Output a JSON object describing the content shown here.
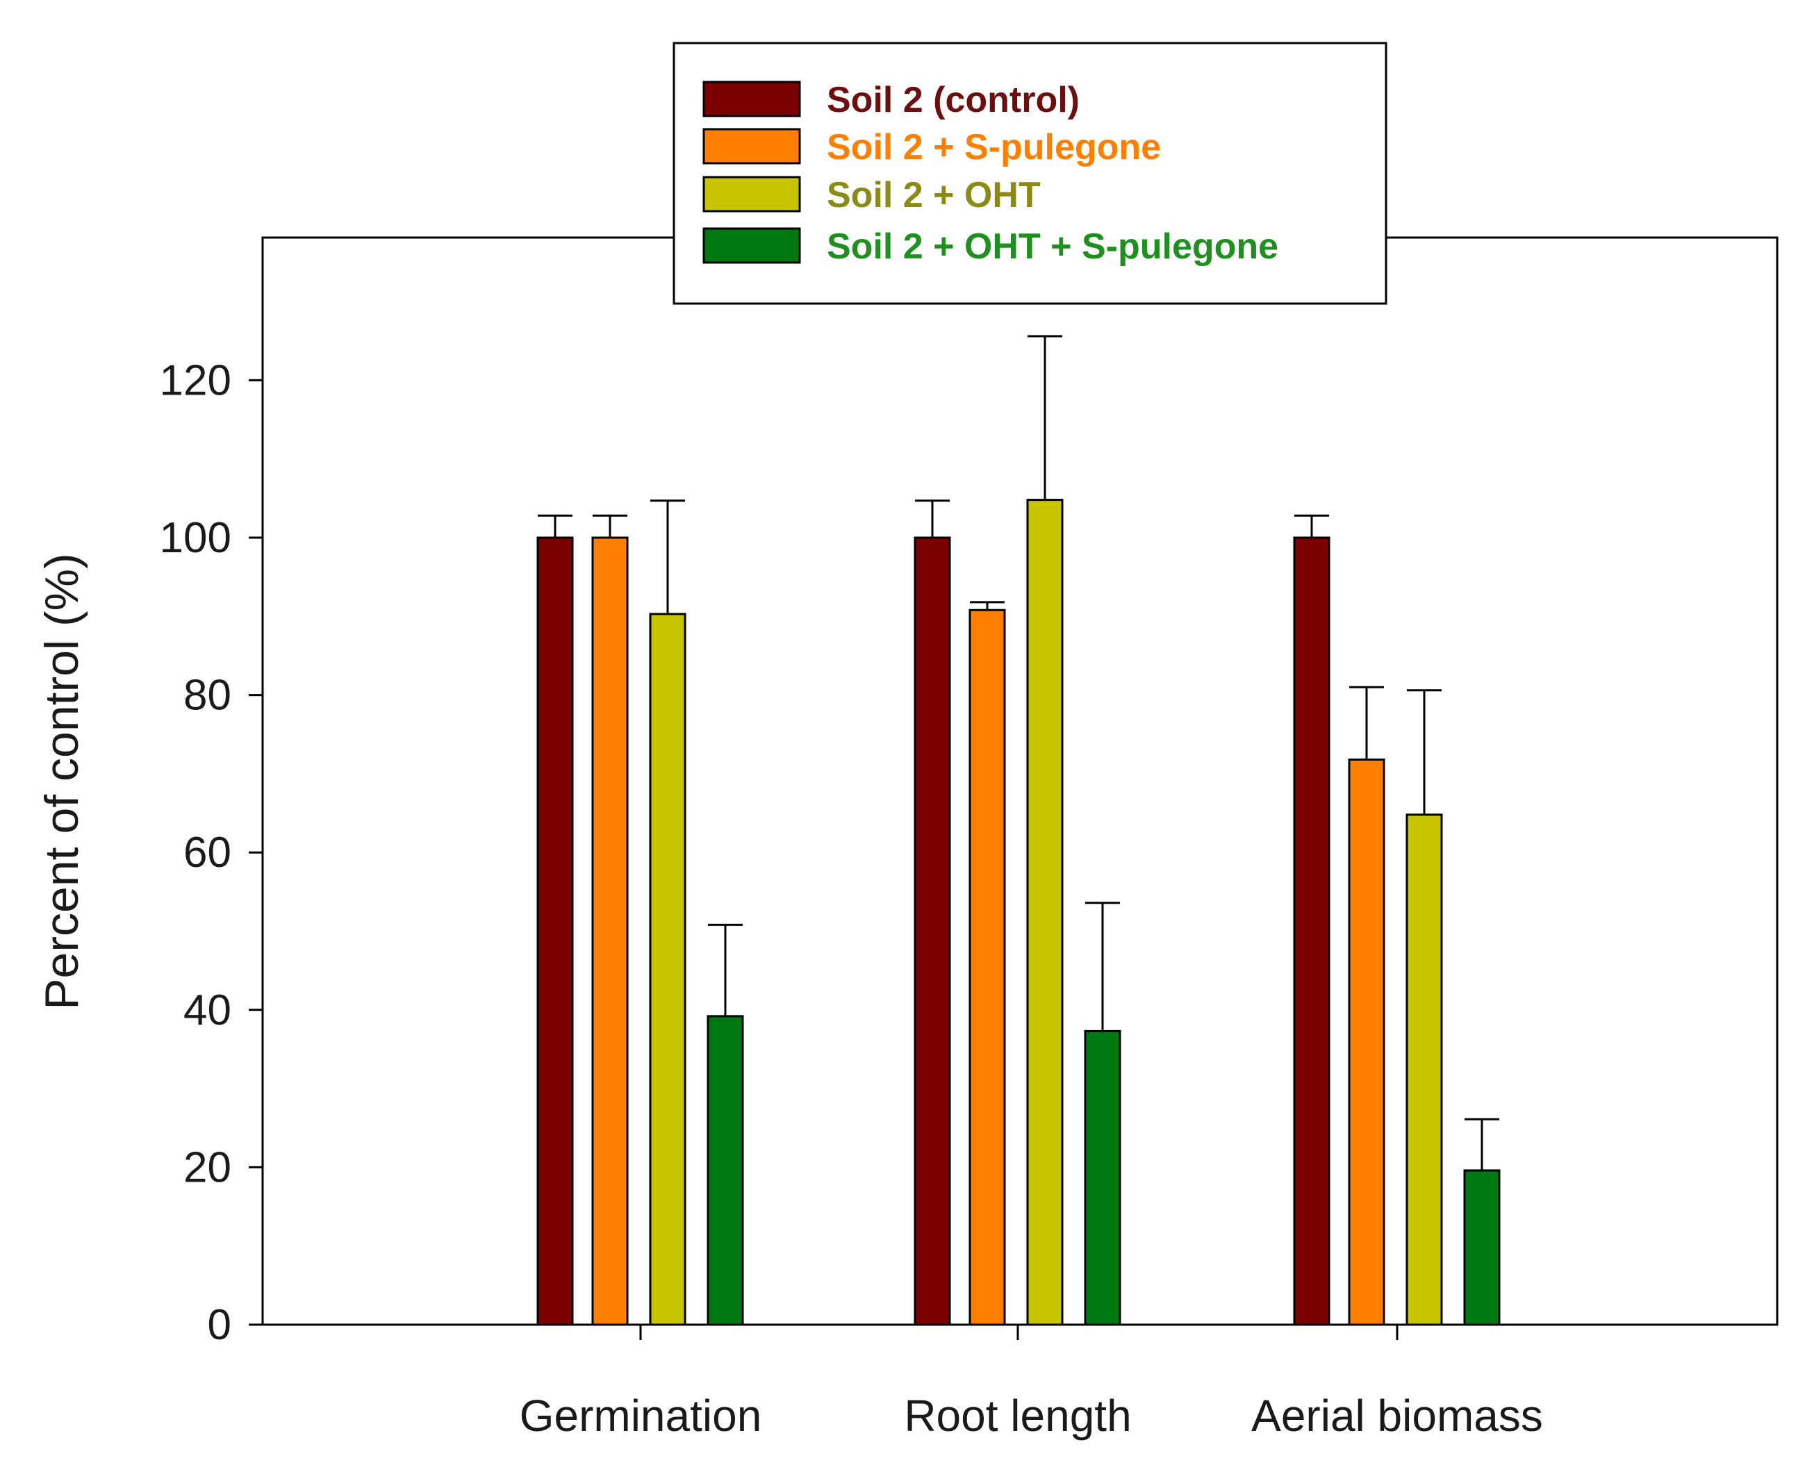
{
  "chart_data": {
    "type": "bar",
    "title": "",
    "xlabel": "",
    "ylabel": "Percent of control (%)",
    "ylim": [
      0,
      138
    ],
    "yticks": [
      0,
      20,
      40,
      60,
      80,
      100,
      120
    ],
    "grid": false,
    "legend_position": "top-center",
    "categories": [
      "Germination",
      "Root length",
      "Aerial biomass"
    ],
    "series": [
      {
        "name": "Soil 2 (control)",
        "color": "#7b0000",
        "label_color": "#6e0f0f",
        "values": [
          100,
          100,
          100
        ],
        "errors": [
          2.8,
          4.7,
          2.8
        ]
      },
      {
        "name": "Soil 2 + S-pulegone",
        "color": "#ff7f00",
        "label_color": "#ff7f00",
        "values": [
          100,
          90.8,
          71.8
        ],
        "errors": [
          2.8,
          1.0,
          9.2
        ]
      },
      {
        "name": "Soil 2 + OHT",
        "color": "#c8c400",
        "label_color": "#8c8a17",
        "values": [
          90.3,
          104.8,
          64.8
        ],
        "errors": [
          14.4,
          20.8,
          15.8
        ]
      },
      {
        "name": "Soil 2 + OHT + S-pulegone",
        "color": "#007a10",
        "label_color": "#1f8f1f",
        "values": [
          39.2,
          37.3,
          19.6
        ],
        "errors": [
          11.6,
          16.3,
          6.5
        ]
      }
    ]
  }
}
